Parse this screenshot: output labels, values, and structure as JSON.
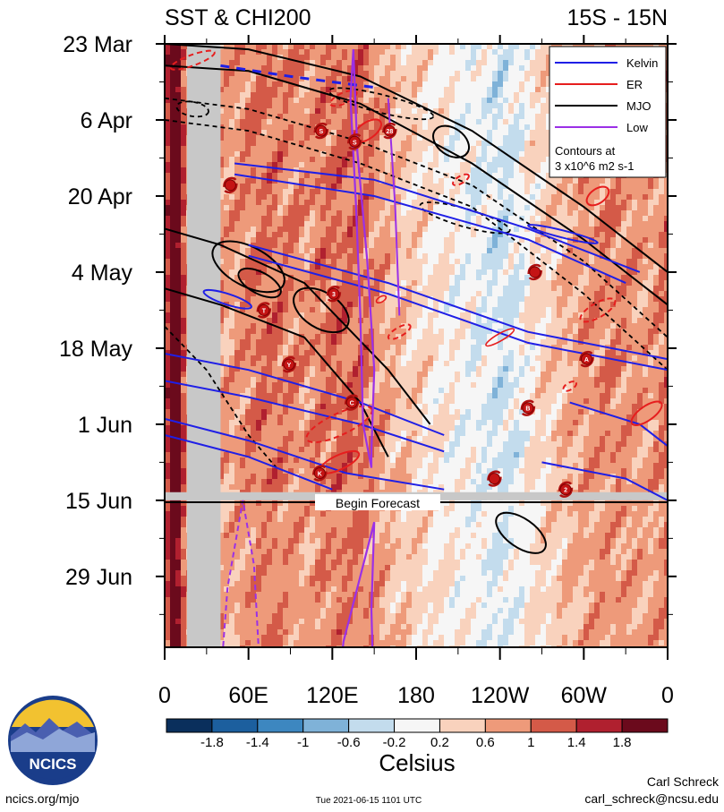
{
  "chart_data": {
    "type": "heatmap",
    "title_left": "SST & CHI200",
    "title_right": "15S - 15N",
    "xticks": [
      "0",
      "60E",
      "120E",
      "180",
      "120W",
      "60W",
      "0"
    ],
    "yticks": [
      "23 Mar",
      "6 Apr",
      "20 Apr",
      "4 May",
      "18 May",
      "1 Jun",
      "15 Jun",
      "29 Jun"
    ],
    "forecast_label": "Begin Forecast",
    "legend": {
      "entries": [
        {
          "name": "Kelvin",
          "color": "#1f1fe6"
        },
        {
          "name": "ER",
          "color": "#e61e1e"
        },
        {
          "name": "MJO",
          "color": "#000000"
        },
        {
          "name": "Low",
          "color": "#9b30e6"
        }
      ],
      "note_line1": "Contours at",
      "note_line2": "3 x10^6 m2 s-1",
      "placement": "top-right"
    },
    "colorbar": {
      "labels": [
        "-1.8",
        "-1.4",
        "-1",
        "-0.6",
        "-0.2",
        "0.2",
        "0.6",
        "1",
        "1.4",
        "1.8"
      ],
      "colors": [
        "#0a2f5c",
        "#1c5f9e",
        "#3d87c0",
        "#7fb2d8",
        "#c3dced",
        "#f6f6f6",
        "#f9d2bd",
        "#ee9a7a",
        "#d45a48",
        "#b0202f",
        "#6b0a1c"
      ],
      "units": "Celsius"
    },
    "storms": [
      {
        "label": "S",
        "lon": 112,
        "day": 16
      },
      {
        "label": "S",
        "lon": 136,
        "day": 18
      },
      {
        "label": "28",
        "lon": 161,
        "day": 16
      },
      {
        "label": "",
        "lon": 47,
        "day": 26
      },
      {
        "label": "T",
        "lon": 71,
        "day": 49
      },
      {
        "label": "3",
        "lon": 121,
        "day": 46
      },
      {
        "label": "Y",
        "lon": 89,
        "day": 59
      },
      {
        "label": "C",
        "lon": 134,
        "day": 66
      },
      {
        "label": "",
        "lon": 265,
        "day": 42
      },
      {
        "label": "A",
        "lon": 302,
        "day": 58
      },
      {
        "label": "B",
        "lon": 260,
        "day": 67
      },
      {
        "label": "K",
        "lon": 111,
        "day": 79
      },
      {
        "label": "",
        "lon": 236,
        "day": 80
      },
      {
        "label": "2",
        "lon": 287,
        "day": 82
      }
    ]
  },
  "branding": {
    "logo_text": "NCICS",
    "site": "ncics.org/mjo",
    "timestamp": "Tue 2021-06-15 1101 UTC",
    "author": "Carl Schreck",
    "email": "carl_schreck@ncsu.edu"
  }
}
